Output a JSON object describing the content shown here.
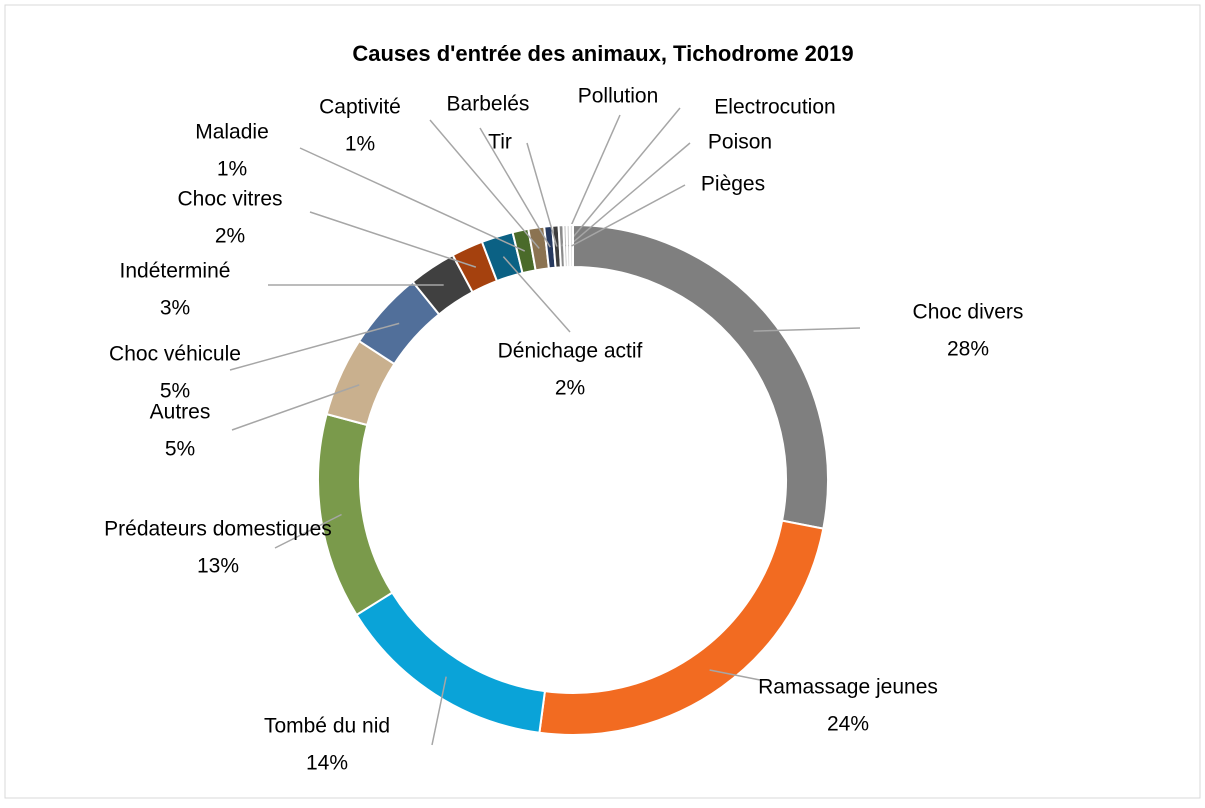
{
  "chart_data": {
    "type": "donut",
    "title": "Causes d'entrée des animaux, Tichodrome 2019",
    "categories": [
      "Choc divers",
      "Ramassage jeunes",
      "Tombé du nid",
      "Prédateurs domestiques",
      "Autres",
      "Choc véhicule",
      "Indéterminé",
      "Choc vitres",
      "Dénichage actif",
      "Maladie",
      "Captivité",
      "Barbelés",
      "Tir",
      "Pollution",
      "Electrocution",
      "Poison",
      "Pièges"
    ],
    "values": [
      28,
      24,
      14,
      13,
      5,
      5,
      3,
      2,
      2,
      1,
      1,
      0.5,
      0.4,
      0.3,
      0.2,
      0.2,
      0.2
    ],
    "value_labels": [
      "28%",
      "24%",
      "14%",
      "13%",
      "5%",
      "5%",
      "3%",
      "2%",
      "2%",
      "1%",
      "1%",
      null,
      null,
      null,
      null,
      null,
      null
    ],
    "colors": [
      "#7f7f7f",
      "#f26b21",
      "#0aa3d8",
      "#7a9a4b",
      "#c9b08e",
      "#516f9a",
      "#404040",
      "#a5410e",
      "#0b6184",
      "#4a6a2a",
      "#8b7351",
      "#26395e",
      "#3d3d3d",
      "#8a8a8a",
      "#c0c0c0",
      "#d0d0d0",
      "#e0e0e0"
    ]
  }
}
